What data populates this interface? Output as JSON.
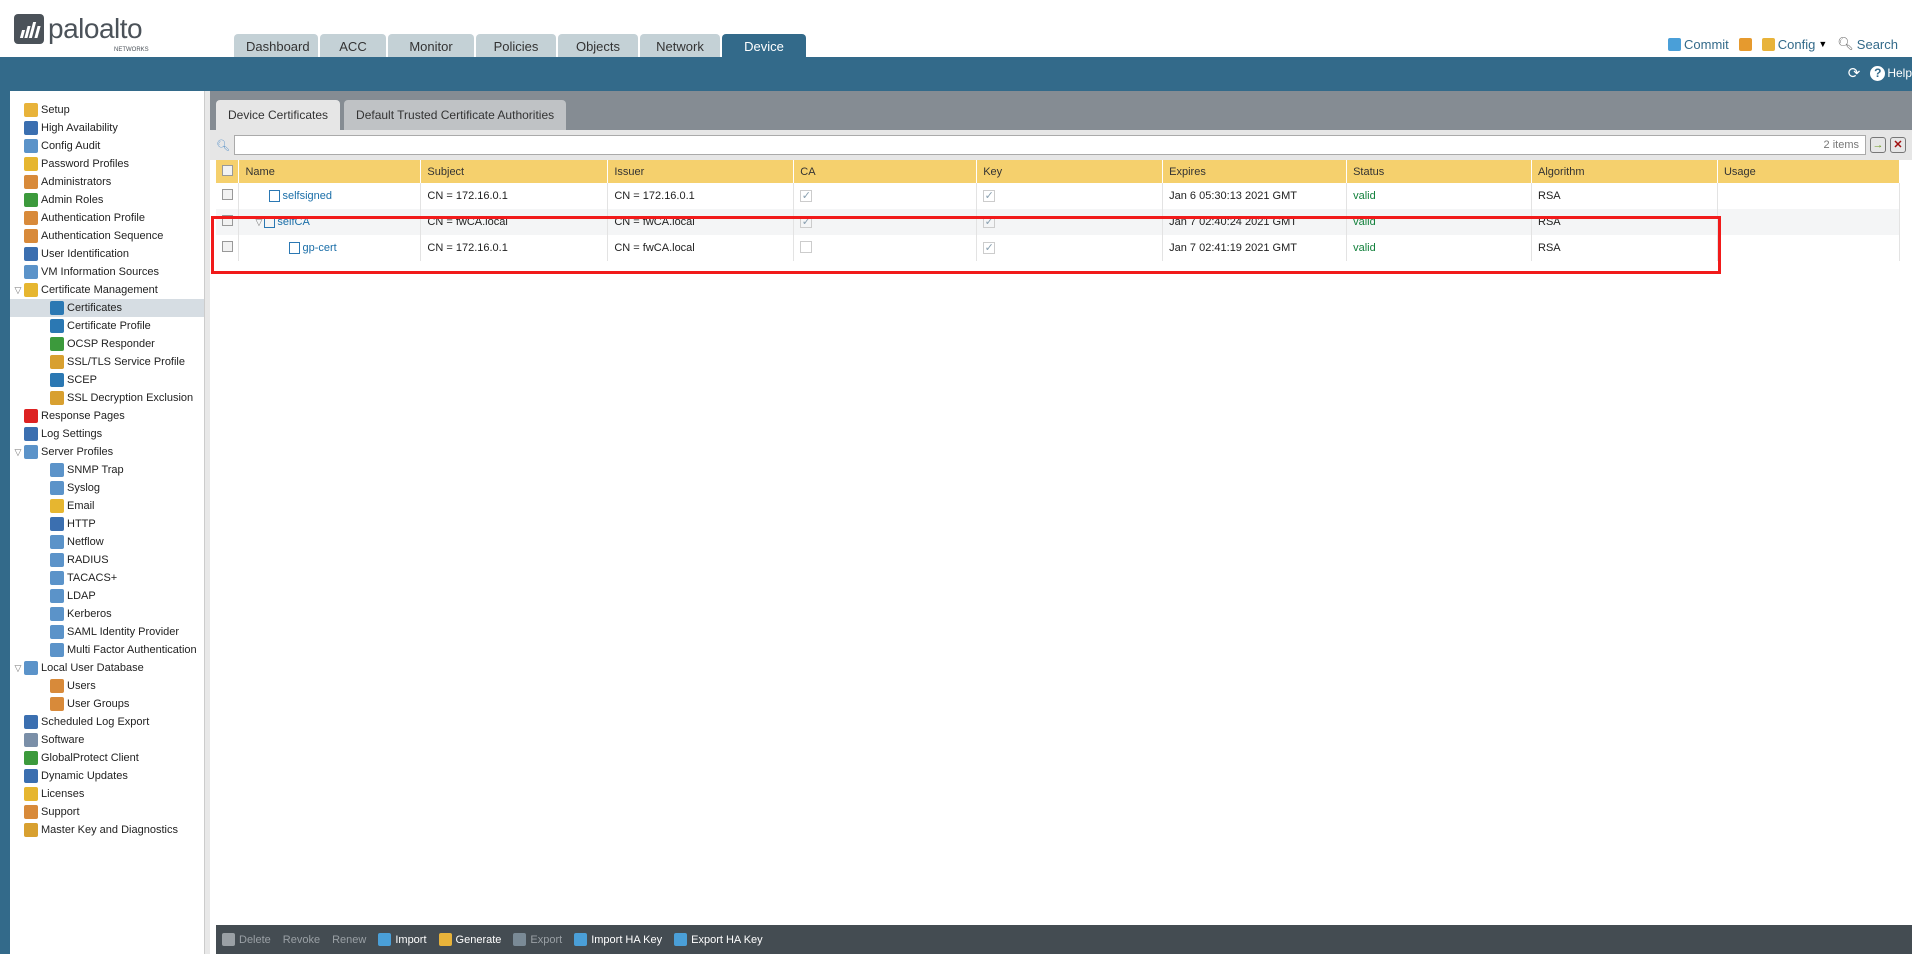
{
  "brand": {
    "name": "paloalto",
    "sub": "NETWORKS"
  },
  "nav_tabs": [
    "Dashboard",
    "ACC",
    "Monitor",
    "Policies",
    "Objects",
    "Network",
    "Device"
  ],
  "active_tab": "Device",
  "top_links": {
    "commit": "Commit",
    "config": "Config",
    "search": "Search"
  },
  "help": "Help",
  "sidebar": [
    {
      "label": "Setup",
      "level": 0,
      "color": "#e8b33a"
    },
    {
      "label": "High Availability",
      "level": 0,
      "color": "#3b6fb0"
    },
    {
      "label": "Config Audit",
      "level": 0,
      "color": "#5b93c9"
    },
    {
      "label": "Password Profiles",
      "level": 0,
      "color": "#e6b630"
    },
    {
      "label": "Administrators",
      "level": 0,
      "color": "#d88a3a"
    },
    {
      "label": "Admin Roles",
      "level": 0,
      "color": "#3c9a3c"
    },
    {
      "label": "Authentication Profile",
      "level": 0,
      "color": "#d88a3a"
    },
    {
      "label": "Authentication Sequence",
      "level": 0,
      "color": "#d88a3a"
    },
    {
      "label": "User Identification",
      "level": 0,
      "color": "#3b6fb0"
    },
    {
      "label": "VM Information Sources",
      "level": 0,
      "color": "#5b93c9"
    },
    {
      "label": "Certificate Management",
      "level": 0,
      "expanded": true,
      "color": "#e6b630"
    },
    {
      "label": "Certificates",
      "level": 1,
      "selected": true,
      "color": "#2b78b3"
    },
    {
      "label": "Certificate Profile",
      "level": 1,
      "color": "#2b78b3"
    },
    {
      "label": "OCSP Responder",
      "level": 1,
      "color": "#3c9a3c"
    },
    {
      "label": "SSL/TLS Service Profile",
      "level": 1,
      "color": "#d8a030"
    },
    {
      "label": "SCEP",
      "level": 1,
      "color": "#2b78b3"
    },
    {
      "label": "SSL Decryption Exclusion",
      "level": 1,
      "color": "#d8a030"
    },
    {
      "label": "Response Pages",
      "level": 0,
      "color": "#d22"
    },
    {
      "label": "Log Settings",
      "level": 0,
      "color": "#3b6fb0"
    },
    {
      "label": "Server Profiles",
      "level": 0,
      "expanded": true,
      "color": "#5b93c9"
    },
    {
      "label": "SNMP Trap",
      "level": 1,
      "color": "#5b93c9"
    },
    {
      "label": "Syslog",
      "level": 1,
      "color": "#5b93c9"
    },
    {
      "label": "Email",
      "level": 1,
      "color": "#e6b630"
    },
    {
      "label": "HTTP",
      "level": 1,
      "color": "#3b6fb0"
    },
    {
      "label": "Netflow",
      "level": 1,
      "color": "#5b93c9"
    },
    {
      "label": "RADIUS",
      "level": 1,
      "color": "#5b93c9"
    },
    {
      "label": "TACACS+",
      "level": 1,
      "color": "#5b93c9"
    },
    {
      "label": "LDAP",
      "level": 1,
      "color": "#5b93c9"
    },
    {
      "label": "Kerberos",
      "level": 1,
      "color": "#5b93c9"
    },
    {
      "label": "SAML Identity Provider",
      "level": 1,
      "color": "#5b93c9"
    },
    {
      "label": "Multi Factor Authentication",
      "level": 1,
      "color": "#5b93c9"
    },
    {
      "label": "Local User Database",
      "level": 0,
      "expanded": true,
      "color": "#5b93c9"
    },
    {
      "label": "Users",
      "level": 1,
      "color": "#d88a3a"
    },
    {
      "label": "User Groups",
      "level": 1,
      "color": "#d88a3a"
    },
    {
      "label": "Scheduled Log Export",
      "level": 0,
      "color": "#3b6fb0"
    },
    {
      "label": "Software",
      "level": 0,
      "color": "#7a8fa8"
    },
    {
      "label": "GlobalProtect Client",
      "level": 0,
      "color": "#3c9a3c"
    },
    {
      "label": "Dynamic Updates",
      "level": 0,
      "color": "#3b6fb0"
    },
    {
      "label": "Licenses",
      "level": 0,
      "color": "#e6b630"
    },
    {
      "label": "Support",
      "level": 0,
      "color": "#d88a3a"
    },
    {
      "label": "Master Key and Diagnostics",
      "level": 0,
      "color": "#d8a030"
    }
  ],
  "sub_tabs": [
    "Device Certificates",
    "Default Trusted Certificate Authorities"
  ],
  "search": {
    "count": "2 items"
  },
  "table": {
    "columns": [
      "Name",
      "Subject",
      "Issuer",
      "CA",
      "Key",
      "Expires",
      "Status",
      "Algorithm",
      "Usage"
    ],
    "rows": [
      {
        "name": "selfsigned",
        "indent": 1,
        "subject": "CN = 172.16.0.1",
        "issuer": "CN = 172.16.0.1",
        "ca": true,
        "key": true,
        "expires": "Jan 6 05:30:13 2021 GMT",
        "status": "valid",
        "algorithm": "RSA",
        "usage": ""
      },
      {
        "name": "selfCA",
        "indent": 0,
        "expander": true,
        "subject": "CN = fwCA.local",
        "issuer": "CN = fwCA.local",
        "ca": true,
        "key": true,
        "expires": "Jan 7 02:40:24 2021 GMT",
        "status": "valid",
        "algorithm": "RSA",
        "usage": ""
      },
      {
        "name": "gp-cert",
        "indent": 2,
        "subject": "CN = 172.16.0.1",
        "issuer": "CN = fwCA.local",
        "ca": false,
        "key": true,
        "expires": "Jan 7 02:41:19 2021 GMT",
        "status": "valid",
        "algorithm": "RSA",
        "usage": ""
      }
    ]
  },
  "bottom_actions": [
    {
      "label": "Delete",
      "enabled": false
    },
    {
      "label": "Revoke",
      "enabled": false
    },
    {
      "label": "Renew",
      "enabled": false
    },
    {
      "label": "Import",
      "enabled": true
    },
    {
      "label": "Generate",
      "enabled": true
    },
    {
      "label": "Export",
      "enabled": false
    },
    {
      "label": "Import HA Key",
      "enabled": true
    },
    {
      "label": "Export HA Key",
      "enabled": true
    }
  ],
  "colors": {
    "brand_blue": "#336a8a",
    "header_yellow": "#f5d06d",
    "valid_green": "#12813c",
    "highlight_red": "#f11a1a"
  }
}
